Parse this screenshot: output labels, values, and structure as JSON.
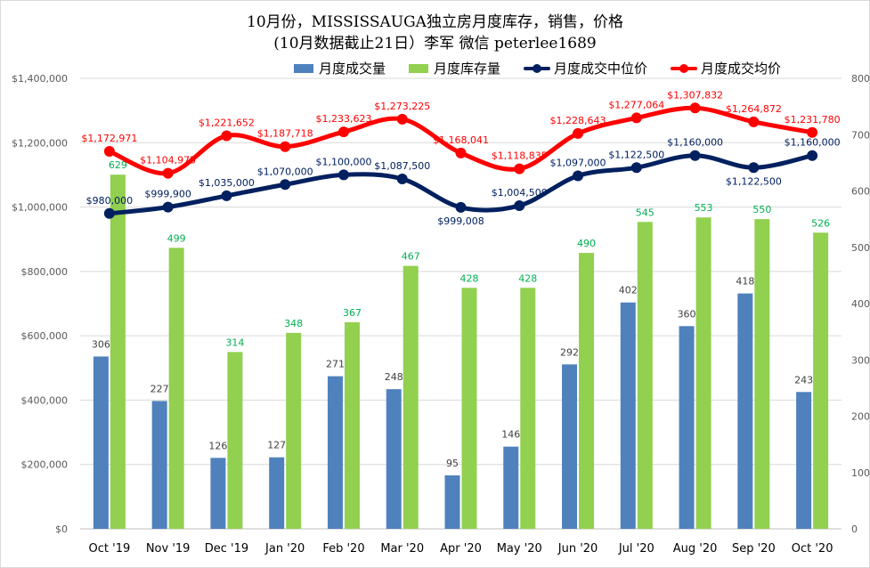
{
  "chart_data": {
    "type": "bar+line",
    "title": "10月份，MISSISSAUGA独立房月度库存，销售，价格",
    "subtitle": "(10月数据截止21日）李军 微信 peterlee1689",
    "categories": [
      "Oct '19",
      "Nov '19",
      "Dec '19",
      "Jan '20",
      "Feb '20",
      "Mar '20",
      "Apr '20",
      "May '20",
      "Jun '20",
      "Jul '20",
      "Aug '20",
      "Sep '20",
      "Oct '20"
    ],
    "bar_series": [
      {
        "name": "月度成交量",
        "color": "#4f81bd",
        "values": [
          306,
          227,
          126,
          127,
          271,
          248,
          95,
          146,
          292,
          402,
          360,
          418,
          243
        ],
        "labels": [
          "306",
          "227",
          "126",
          "127",
          "271",
          "248",
          "95",
          "146",
          "292",
          "402",
          "360",
          "418",
          "243"
        ]
      },
      {
        "name": "月度库存量",
        "color": "#92d050",
        "label_color": "#00b050",
        "values": [
          629,
          499,
          314,
          348,
          367,
          467,
          428,
          428,
          490,
          545,
          553,
          550,
          526
        ],
        "labels": [
          "629",
          "499",
          "314",
          "348",
          "367",
          "467",
          "428",
          "428",
          "490",
          "545",
          "553",
          "550",
          "526"
        ]
      }
    ],
    "line_series": [
      {
        "name": "月度成交中位价",
        "color": "#002060",
        "values": [
          980000,
          999900,
          1035000,
          1070000,
          1100000,
          1087500,
          999008,
          1004500,
          1097000,
          1122500,
          1160000,
          1122500,
          1160000
        ],
        "labels": [
          "$980,000",
          "$999,900",
          "$1,035,000",
          "$1,070,000",
          "$1,100,000",
          "$1,087,500",
          "$999,008",
          "$1,004,500",
          "$1,097,000",
          "$1,122,500",
          "$1,160,000",
          "$1,122,500",
          "$1,160,000"
        ]
      },
      {
        "name": "月度成交均价",
        "color": "#ff0000",
        "values": [
          1172971,
          1104975,
          1221652,
          1187718,
          1233623,
          1273225,
          1168041,
          1118835,
          1228643,
          1277064,
          1307832,
          1264872,
          1231780
        ],
        "labels": [
          "$1,172,971",
          "$1,104,975",
          "$1,221,652",
          "$1,187,718",
          "$1,233,623",
          "$1,273,225",
          "$1,168,041",
          "$1,118,835",
          "$1,228,643",
          "$1,277,064",
          "$1,307,832",
          "$1,264,872",
          "$1,231,780"
        ]
      }
    ],
    "left_axis": {
      "min": 0,
      "max": 1400000,
      "step": 200000,
      "ticks": [
        "$0",
        "$200,000",
        "$400,000",
        "$600,000",
        "$800,000",
        "$1,000,000",
        "$1,200,000",
        "$1,400,000"
      ]
    },
    "right_axis": {
      "min": 0,
      "max": 800,
      "step": 100,
      "ticks": [
        "0",
        "100",
        "200",
        "300",
        "400",
        "500",
        "600",
        "700",
        "800"
      ]
    },
    "grid": true,
    "legend_position": "top"
  }
}
